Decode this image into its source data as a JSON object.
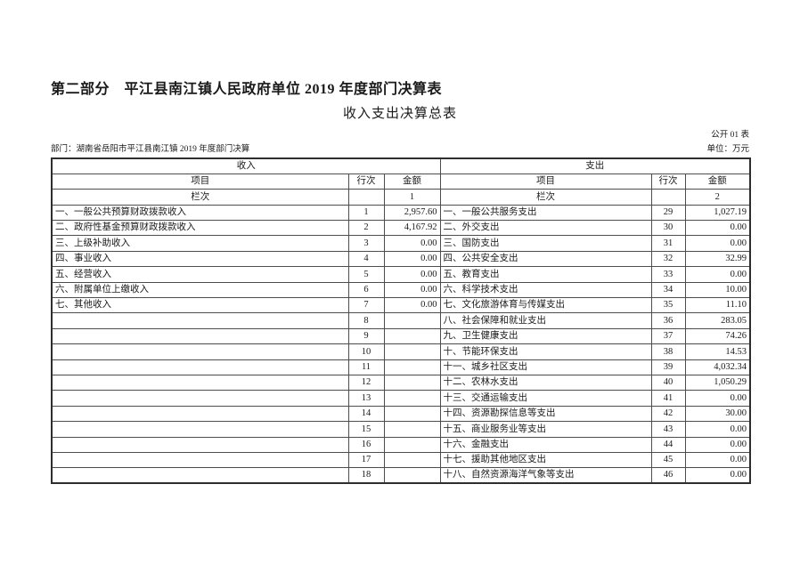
{
  "page": {
    "title": "第二部分　平江县南江镇人民政府单位 2019 年度部门决算表",
    "subtitle": "收入支出决算总表",
    "table_no": "公开 01 表",
    "department": "部门：湖南省岳阳市平江县南江镇 2019 年度部门决算",
    "unit": "单位：万元"
  },
  "table": {
    "income_section": "收入",
    "expense_section": "支出",
    "col_item": "项目",
    "col_line": "行次",
    "col_amount": "金额",
    "col_index_label": "栏次",
    "income_col_index": "1",
    "expense_col_index": "2",
    "rows": [
      {
        "i_item": "一、一般公共预算财政拨款收入",
        "i_row": "1",
        "i_amt": "2,957.60",
        "e_item": "一、一般公共服务支出",
        "e_row": "29",
        "e_amt": "1,027.19"
      },
      {
        "i_item": "二、政府性基金预算财政拨款收入",
        "i_row": "2",
        "i_amt": "4,167.92",
        "e_item": "二、外交支出",
        "e_row": "30",
        "e_amt": "0.00"
      },
      {
        "i_item": "三、上级补助收入",
        "i_row": "3",
        "i_amt": "0.00",
        "e_item": "三、国防支出",
        "e_row": "31",
        "e_amt": "0.00"
      },
      {
        "i_item": "四、事业收入",
        "i_row": "4",
        "i_amt": "0.00",
        "e_item": "四、公共安全支出",
        "e_row": "32",
        "e_amt": "32.99"
      },
      {
        "i_item": "五、经营收入",
        "i_row": "5",
        "i_amt": "0.00",
        "e_item": "五、教育支出",
        "e_row": "33",
        "e_amt": "0.00"
      },
      {
        "i_item": "六、附属单位上缴收入",
        "i_row": "6",
        "i_amt": "0.00",
        "e_item": "六、科学技术支出",
        "e_row": "34",
        "e_amt": "10.00"
      },
      {
        "i_item": "七、其他收入",
        "i_row": "7",
        "i_amt": "0.00",
        "e_item": "七、文化旅游体育与传媒支出",
        "e_row": "35",
        "e_amt": "11.10"
      },
      {
        "i_item": "",
        "i_row": "8",
        "i_amt": "",
        "e_item": "八、社会保障和就业支出",
        "e_row": "36",
        "e_amt": "283.05"
      },
      {
        "i_item": "",
        "i_row": "9",
        "i_amt": "",
        "e_item": "九、卫生健康支出",
        "e_row": "37",
        "e_amt": "74.26"
      },
      {
        "i_item": "",
        "i_row": "10",
        "i_amt": "",
        "e_item": "十、节能环保支出",
        "e_row": "38",
        "e_amt": "14.53"
      },
      {
        "i_item": "",
        "i_row": "11",
        "i_amt": "",
        "e_item": "十一、城乡社区支出",
        "e_row": "39",
        "e_amt": "4,032.34"
      },
      {
        "i_item": "",
        "i_row": "12",
        "i_amt": "",
        "e_item": "十二、农林水支出",
        "e_row": "40",
        "e_amt": "1,050.29"
      },
      {
        "i_item": "",
        "i_row": "13",
        "i_amt": "",
        "e_item": "十三、交通运输支出",
        "e_row": "41",
        "e_amt": "0.00"
      },
      {
        "i_item": "",
        "i_row": "14",
        "i_amt": "",
        "e_item": "十四、资源勘探信息等支出",
        "e_row": "42",
        "e_amt": "30.00"
      },
      {
        "i_item": "",
        "i_row": "15",
        "i_amt": "",
        "e_item": "十五、商业服务业等支出",
        "e_row": "43",
        "e_amt": "0.00"
      },
      {
        "i_item": "",
        "i_row": "16",
        "i_amt": "",
        "e_item": "十六、金融支出",
        "e_row": "44",
        "e_amt": "0.00"
      },
      {
        "i_item": "",
        "i_row": "17",
        "i_amt": "",
        "e_item": "十七、援助其他地区支出",
        "e_row": "45",
        "e_amt": "0.00"
      },
      {
        "i_item": "",
        "i_row": "18",
        "i_amt": "",
        "e_item": "十八、自然资源海洋气象等支出",
        "e_row": "46",
        "e_amt": "0.00"
      }
    ]
  }
}
